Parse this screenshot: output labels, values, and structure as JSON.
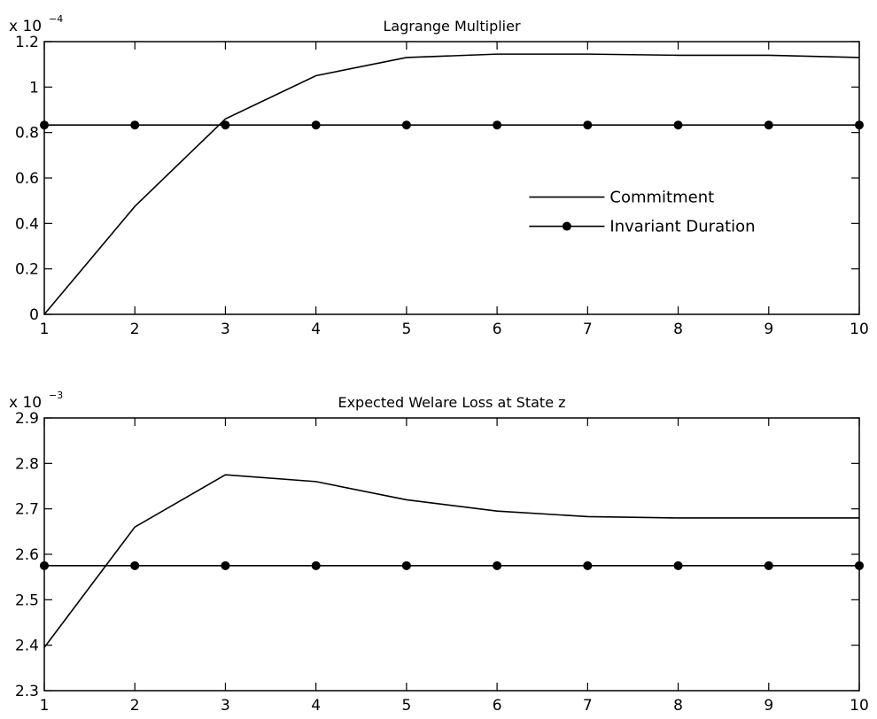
{
  "chart_data": [
    {
      "type": "line",
      "title": "Lagrange Multiplier",
      "exponent_label": {
        "base": "x 10",
        "power": "−4"
      },
      "xlabel": "",
      "ylabel": "",
      "x": [
        1,
        2,
        3,
        4,
        5,
        6,
        7,
        8,
        9,
        10
      ],
      "xlim": [
        1,
        10
      ],
      "ylim": [
        0,
        1.2
      ],
      "xticks": [
        "1",
        "2",
        "3",
        "4",
        "5",
        "6",
        "7",
        "8",
        "9",
        "10"
      ],
      "yticks": [
        "0",
        "0.2",
        "0.4",
        "0.6",
        "0.8",
        "1",
        "1.2"
      ],
      "ytick_values": [
        0,
        0.2,
        0.4,
        0.6,
        0.8,
        1.0,
        1.2
      ],
      "grid": false,
      "legend_position": "center-right",
      "series": [
        {
          "name": "Commitment",
          "marker": "none",
          "color": "#000000",
          "values": [
            0,
            0.475,
            0.86,
            1.05,
            1.13,
            1.145,
            1.145,
            1.14,
            1.14,
            1.13
          ]
        },
        {
          "name": "Invariant Duration",
          "marker": "circle",
          "color": "#000000",
          "values": [
            0.833,
            0.833,
            0.833,
            0.833,
            0.833,
            0.833,
            0.833,
            0.833,
            0.833,
            0.833
          ]
        }
      ]
    },
    {
      "type": "line",
      "title": "Expected Welare Loss at State z",
      "exponent_label": {
        "base": "x 10",
        "power": "−3"
      },
      "xlabel": "",
      "ylabel": "",
      "x": [
        1,
        2,
        3,
        4,
        5,
        6,
        7,
        8,
        9,
        10
      ],
      "xlim": [
        1,
        10
      ],
      "ylim": [
        2.3,
        2.9
      ],
      "xticks": [
        "1",
        "2",
        "3",
        "4",
        "5",
        "6",
        "7",
        "8",
        "9",
        "10"
      ],
      "yticks": [
        "2.3",
        "2.4",
        "2.5",
        "2.6",
        "2.7",
        "2.8",
        "2.9"
      ],
      "ytick_values": [
        2.3,
        2.4,
        2.5,
        2.6,
        2.7,
        2.8,
        2.9
      ],
      "grid": false,
      "legend_position": "none",
      "series": [
        {
          "name": "Commitment",
          "marker": "none",
          "color": "#000000",
          "values": [
            2.395,
            2.66,
            2.775,
            2.76,
            2.72,
            2.695,
            2.683,
            2.68,
            2.68,
            2.68
          ]
        },
        {
          "name": "Invariant Duration",
          "marker": "circle",
          "color": "#000000",
          "values": [
            2.575,
            2.575,
            2.575,
            2.575,
            2.575,
            2.575,
            2.575,
            2.575,
            2.575,
            2.575
          ]
        }
      ]
    }
  ]
}
